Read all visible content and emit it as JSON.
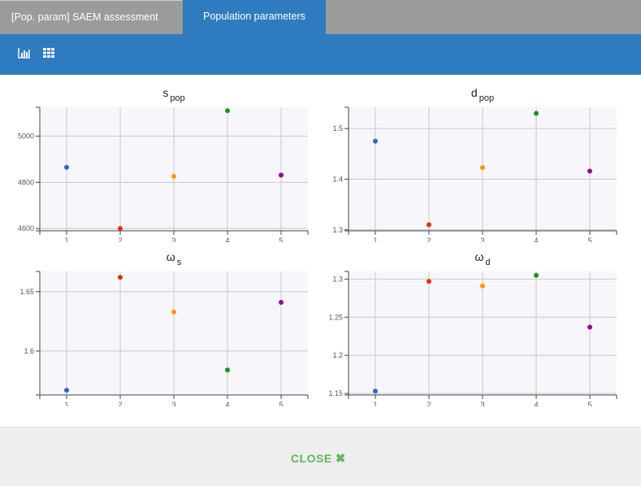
{
  "tabs": [
    {
      "label": "[Pop. param] SAEM assessment",
      "active": false
    },
    {
      "label": "Population parameters",
      "active": true
    }
  ],
  "toolbar": {
    "icons": [
      "bar-chart-icon",
      "grid-icon"
    ]
  },
  "colors": {
    "accent": "#2f7bbf",
    "close": "#5cb85c",
    "plot_bg": "#f7f7fb"
  },
  "footer": {
    "close_label": "CLOSE",
    "close_icon": "✖"
  },
  "chart_data": [
    {
      "type": "scatter",
      "title": "s",
      "title_sub": "pop",
      "x": [
        1,
        2,
        3,
        4,
        5
      ],
      "y": [
        4865,
        4600,
        4826,
        5110,
        4831
      ],
      "colors": [
        "#3a5fcd",
        "#dd3311",
        "#ff9900",
        "#119911",
        "#990099"
      ],
      "xticks": [
        1,
        2,
        3,
        4,
        5
      ],
      "yticks": [
        4600,
        4800,
        5000
      ],
      "ytick_labels": [
        "4600",
        "4800",
        "5000"
      ],
      "xlim": [
        0.5,
        5.5
      ],
      "ylim": [
        4590,
        5125
      ],
      "grid": true
    },
    {
      "type": "scatter",
      "title": "d",
      "title_sub": "pop",
      "x": [
        1,
        2,
        3,
        4,
        5
      ],
      "y": [
        1.475,
        1.31,
        1.423,
        1.53,
        1.416
      ],
      "colors": [
        "#3a5fcd",
        "#dd3311",
        "#ff9900",
        "#119911",
        "#990099"
      ],
      "xticks": [
        1,
        2,
        3,
        4,
        5
      ],
      "yticks": [
        1.3,
        1.4,
        1.5
      ],
      "ytick_labels": [
        "1.3",
        "1.4",
        "1.5"
      ],
      "xlim": [
        0.5,
        5.5
      ],
      "ylim": [
        1.298,
        1.542
      ],
      "grid": true
    },
    {
      "type": "scatter",
      "title": "ω",
      "title_sub": "s",
      "x": [
        1,
        2,
        3,
        4,
        5
      ],
      "y": [
        1.567,
        1.662,
        1.633,
        1.584,
        1.641
      ],
      "colors": [
        "#3a5fcd",
        "#dd3311",
        "#ff9900",
        "#119911",
        "#990099"
      ],
      "xticks": [
        1,
        2,
        3,
        4,
        5
      ],
      "yticks": [
        1.6,
        1.65
      ],
      "ytick_labels": [
        "1.6",
        "1.65"
      ],
      "xlim": [
        0.5,
        5.5
      ],
      "ylim": [
        1.563,
        1.667
      ],
      "grid": true
    },
    {
      "type": "scatter",
      "title": "ω",
      "title_sub": "d",
      "x": [
        1,
        2,
        3,
        4,
        5
      ],
      "y": [
        1.153,
        1.297,
        1.291,
        1.305,
        1.237
      ],
      "colors": [
        "#3a5fcd",
        "#dd3311",
        "#ff9900",
        "#119911",
        "#990099"
      ],
      "xticks": [
        1,
        2,
        3,
        4,
        5
      ],
      "yticks": [
        1.15,
        1.2,
        1.25,
        1.3
      ],
      "ytick_labels": [
        "1.15",
        "1.2",
        "1.25",
        "1.3"
      ],
      "xlim": [
        0.5,
        5.5
      ],
      "ylim": [
        1.148,
        1.31
      ],
      "grid": true
    }
  ]
}
